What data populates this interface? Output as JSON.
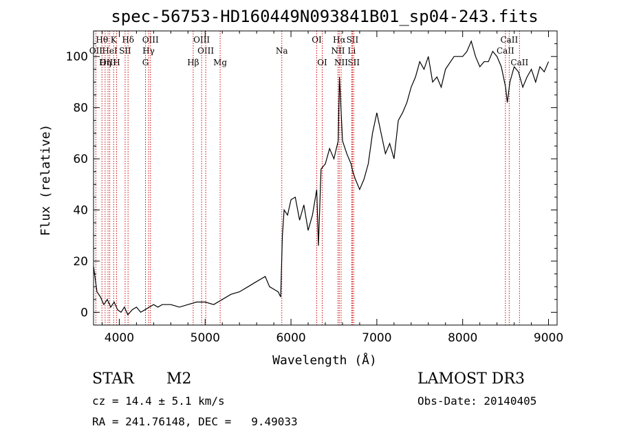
{
  "chart_data": {
    "type": "line",
    "title": "spec-56753-HD160449N093841B01_sp04-243.fits",
    "xlabel": "Wavelength (Å)",
    "ylabel": "Flux (relative)",
    "xlim": [
      3700,
      9100
    ],
    "ylim": [
      -5,
      110
    ],
    "x_ticks": [
      4000,
      5000,
      6000,
      7000,
      8000,
      9000
    ],
    "y_ticks": [
      0,
      20,
      40,
      60,
      80,
      100
    ],
    "grid": false,
    "line_color": "#000000",
    "series": [
      {
        "x": [
          3700,
          3740,
          3780,
          3820,
          3860,
          3900,
          3940,
          3980,
          4020,
          4060,
          4100,
          4150,
          4200,
          4250,
          4300,
          4350,
          4400,
          4450,
          4500,
          4600,
          4700,
          4800,
          4900,
          5000,
          5100,
          5200,
          5300,
          5400,
          5500,
          5600,
          5700,
          5750,
          5800,
          5850,
          5880,
          5900,
          5920,
          5960,
          6000,
          6050,
          6100,
          6150,
          6200,
          6250,
          6300,
          6320,
          6350,
          6400,
          6450,
          6500,
          6550,
          6565,
          6600,
          6650,
          6700,
          6720,
          6750,
          6800,
          6850,
          6900,
          6950,
          7000,
          7050,
          7100,
          7150,
          7200,
          7250,
          7300,
          7350,
          7400,
          7450,
          7500,
          7550,
          7600,
          7650,
          7700,
          7750,
          7800,
          7900,
          8000,
          8050,
          8100,
          8150,
          8200,
          8250,
          8300,
          8350,
          8400,
          8450,
          8500,
          8520,
          8550,
          8600,
          8650,
          8700,
          8750,
          8800,
          8850,
          8900,
          8950,
          9000
        ],
        "y": [
          18,
          8,
          6,
          3,
          5,
          2,
          4,
          1,
          0,
          2,
          -1,
          1,
          2,
          0,
          1,
          2,
          3,
          2,
          3,
          3,
          2,
          3,
          4,
          4,
          3,
          5,
          7,
          8,
          10,
          12,
          14,
          10,
          9,
          8,
          6,
          30,
          40,
          38,
          44,
          45,
          36,
          42,
          32,
          38,
          48,
          26,
          56,
          58,
          64,
          60,
          67,
          92,
          67,
          62,
          58,
          55,
          52,
          48,
          52,
          58,
          70,
          78,
          70,
          62,
          66,
          60,
          75,
          78,
          82,
          88,
          92,
          98,
          95,
          100,
          90,
          92,
          88,
          95,
          100,
          100,
          102,
          106,
          100,
          96,
          98,
          98,
          102,
          100,
          96,
          88,
          82,
          90,
          96,
          94,
          88,
          92,
          95,
          90,
          96,
          94,
          98
        ]
      }
    ],
    "line_labels": [
      {
        "text": "Hθ",
        "x": 3798,
        "row": 1
      },
      {
        "text": "K",
        "x": 3934,
        "row": 1
      },
      {
        "text": "Hδ",
        "x": 4102,
        "row": 1
      },
      {
        "text": "OII",
        "x": 3727,
        "row": 2
      },
      {
        "text": "HeI",
        "x": 3889,
        "row": 2
      },
      {
        "text": "SII",
        "x": 4068,
        "row": 2
      },
      {
        "text": "OIII",
        "x": 3869,
        "row": 3
      },
      {
        "text": "Hη",
        "x": 3835,
        "row": 3
      },
      {
        "text": "H",
        "x": 3969,
        "row": 3
      },
      {
        "text": "OIII",
        "x": 4363,
        "row": 1
      },
      {
        "text": "Hγ",
        "x": 4341,
        "row": 2
      },
      {
        "text": "G",
        "x": 4305,
        "row": 3
      },
      {
        "text": "OIII",
        "x": 4959,
        "row": 1
      },
      {
        "text": "OIII",
        "x": 5007,
        "row": 2
      },
      {
        "text": "Hβ",
        "x": 4861,
        "row": 3
      },
      {
        "text": "Mg",
        "x": 5175,
        "row": 3
      },
      {
        "text": "Na",
        "x": 5893,
        "row": 2
      },
      {
        "text": "OI",
        "x": 6300,
        "row": 1
      },
      {
        "text": "OI",
        "x": 6364,
        "row": 3
      },
      {
        "text": "Hα",
        "x": 6563,
        "row": 1
      },
      {
        "text": "SII",
        "x": 6716,
        "row": 1
      },
      {
        "text": "NII",
        "x": 6548,
        "row": 2
      },
      {
        "text": "Li",
        "x": 6708,
        "row": 2
      },
      {
        "text": "NII",
        "x": 6584,
        "row": 3
      },
      {
        "text": "SII",
        "x": 6731,
        "row": 3
      },
      {
        "text": "CaII",
        "x": 8542,
        "row": 1
      },
      {
        "text": "CaII",
        "x": 8498,
        "row": 2
      },
      {
        "text": "CaII",
        "x": 8662,
        "row": 3
      }
    ],
    "marker_lines": [
      3727,
      3798,
      3835,
      3869,
      3889,
      3934,
      3969,
      4068,
      4102,
      4305,
      4341,
      4363,
      4861,
      4959,
      5007,
      5175,
      5893,
      6300,
      6364,
      6548,
      6563,
      6584,
      6708,
      6716,
      6731,
      8498,
      8542,
      8662
    ],
    "marker_color": "#cc0000"
  },
  "info": {
    "class_label": "STAR",
    "subclass": "M2",
    "survey": "LAMOST DR3",
    "cz": "cz = 14.4 ± 5.1 km/s",
    "obs_date": "Obs-Date: 20140405",
    "coords": "RA = 241.76148, DEC =   9.49033"
  }
}
